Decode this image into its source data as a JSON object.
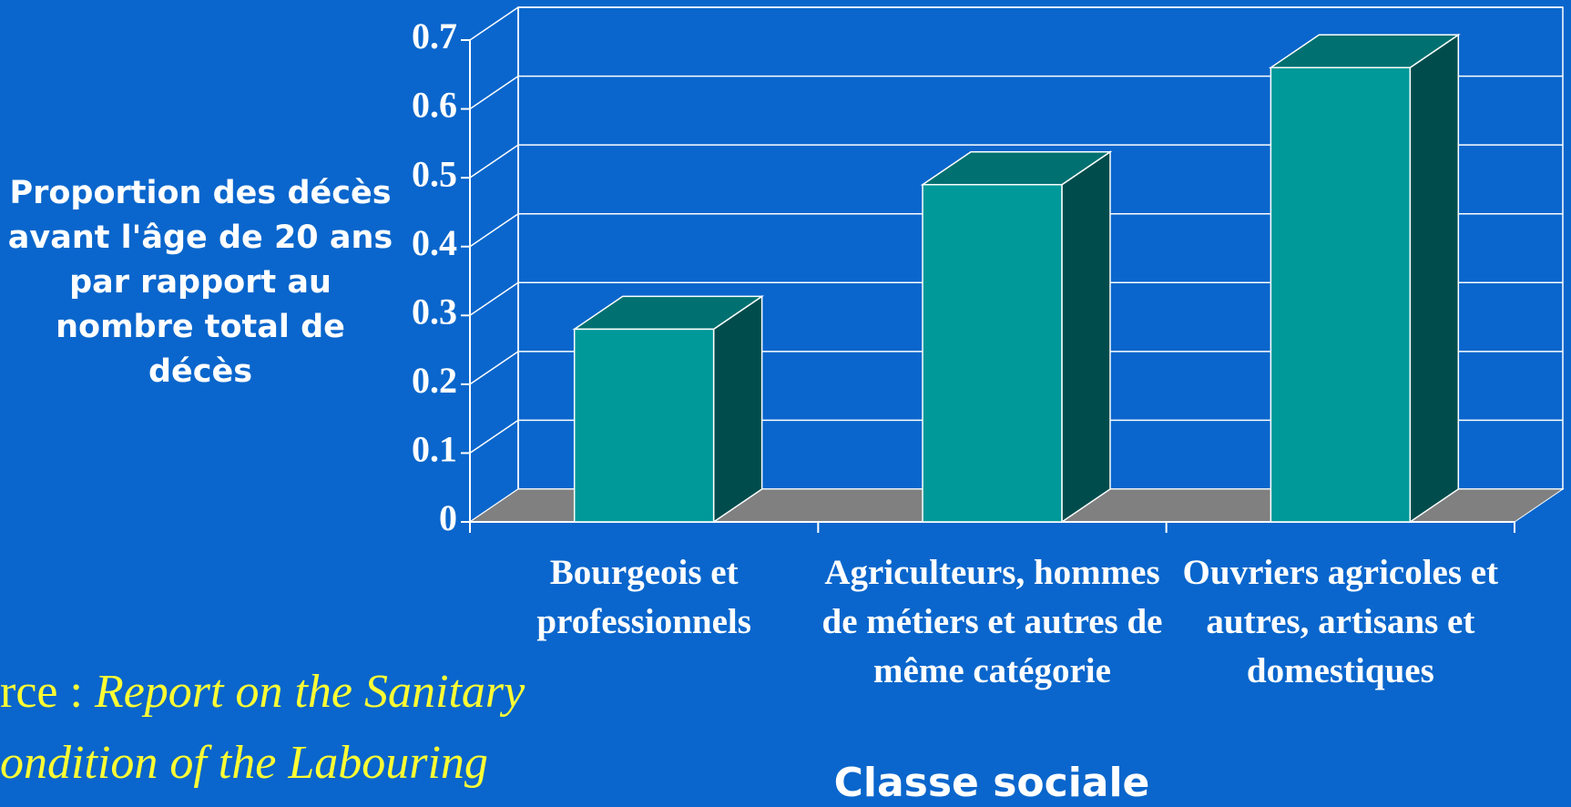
{
  "chart_data": {
    "type": "bar3d",
    "y_axis_label": "Proportion des décès avant l'âge de 20 ans par rapport au nombre total de décès",
    "x_axis_label": "Classe sociale",
    "categories": [
      "Bourgeois et professionnels",
      "Agriculteurs, hommes de métiers et autres de même catégorie",
      "Ouvriers agricoles et autres, artisans et domestiques"
    ],
    "values": [
      0.28,
      0.49,
      0.66
    ],
    "color": "#009999",
    "ylim": [
      0,
      0.7
    ],
    "yticks": [
      0,
      0.1,
      0.2,
      0.3,
      0.4,
      0.5,
      0.6,
      0.7
    ],
    "grid": true,
    "source": {
      "prefix": "rce :",
      "line1": "Report on the Sanitary",
      "line2": "ondition of the Labouring"
    }
  }
}
